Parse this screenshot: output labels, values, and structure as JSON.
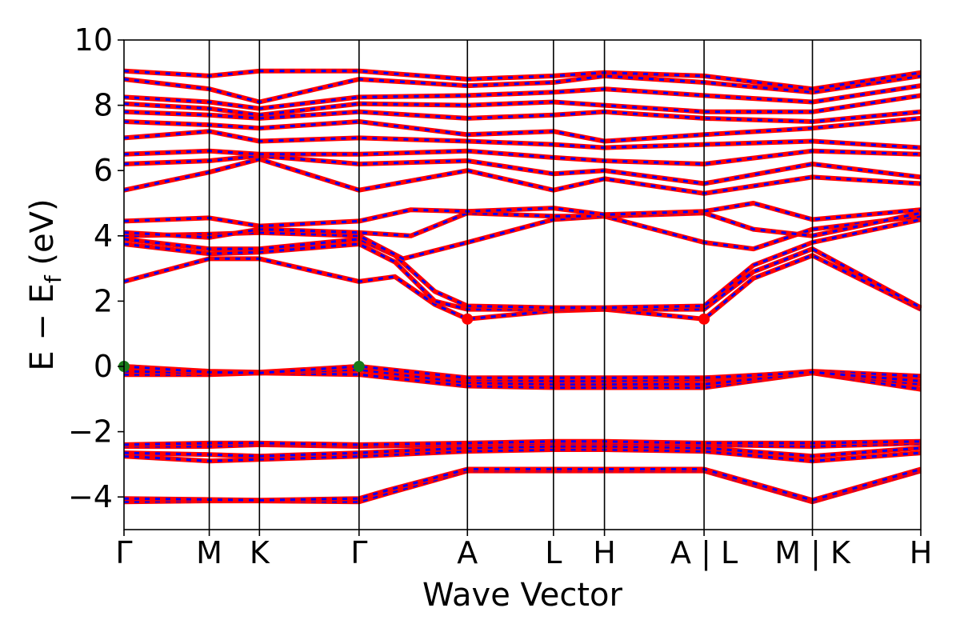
{
  "chart_data": {
    "type": "line",
    "xlabel": "Wave Vector",
    "ylabel_main": "E − E",
    "ylabel_sub": "f",
    "ylabel_unit": " (eV)",
    "ylim": [
      -5,
      10
    ],
    "yticks": [
      -4,
      -2,
      0,
      2,
      4,
      6,
      8,
      10
    ],
    "ytick_labels": [
      "−4",
      "−2",
      "0",
      "2",
      "4",
      "6",
      "8",
      "10"
    ],
    "kpath_ticks": [
      {
        "pos": 0.0,
        "label": "Γ"
      },
      {
        "pos": 0.107,
        "label": "M"
      },
      {
        "pos": 0.17,
        "label": "K"
      },
      {
        "pos": 0.295,
        "label": "Γ"
      },
      {
        "pos": 0.431,
        "label": "A"
      },
      {
        "pos": 0.539,
        "label": "L"
      },
      {
        "pos": 0.603,
        "label": "H"
      },
      {
        "pos": 0.728,
        "label": "A | L"
      },
      {
        "pos": 0.864,
        "label": "M | K"
      },
      {
        "pos": 1.0,
        "label": "H"
      }
    ],
    "band_colors": {
      "primary": "#ff0000",
      "secondary": "#0000ff"
    },
    "markers": [
      {
        "kind": "vbm",
        "x": 0.0,
        "y": 0.0,
        "color": "#1a7a1a"
      },
      {
        "kind": "vbm",
        "x": 0.295,
        "y": 0.0,
        "color": "#1a7a1a"
      },
      {
        "kind": "cbm",
        "x": 0.431,
        "y": 1.45,
        "color": "#ff0000"
      },
      {
        "kind": "cbm",
        "x": 0.728,
        "y": 1.45,
        "color": "#ff0000"
      }
    ],
    "bands": [
      {
        "name": "",
        "x": [
          0,
          0.107,
          0.17,
          0.295,
          0.33,
          0.431,
          0.539,
          0.603,
          0.728,
          0.864,
          1.0
        ],
        "y": [
          -4.15,
          -4.12,
          -4.12,
          -4.15,
          -3.9,
          -3.2,
          -3.2,
          -3.2,
          -3.2,
          -4.15,
          -3.2
        ]
      },
      {
        "name": "",
        "x": [
          0,
          0.107,
          0.17,
          0.295,
          0.33,
          0.431,
          0.539,
          0.603,
          0.728,
          0.864,
          1.0
        ],
        "y": [
          -4.05,
          -4.08,
          -4.1,
          -4.05,
          -3.8,
          -3.15,
          -3.15,
          -3.15,
          -3.15,
          -4.1,
          -3.15
        ]
      },
      {
        "name": "",
        "x": [
          0,
          0.107,
          0.17,
          0.295,
          0.431,
          0.539,
          0.603,
          0.728,
          0.864,
          1.0
        ],
        "y": [
          -2.75,
          -2.9,
          -2.85,
          -2.75,
          -2.6,
          -2.55,
          -2.55,
          -2.6,
          -2.9,
          -2.65
        ]
      },
      {
        "name": "",
        "x": [
          0,
          0.107,
          0.17,
          0.295,
          0.431,
          0.539,
          0.603,
          0.728,
          0.864,
          1.0
        ],
        "y": [
          -2.65,
          -2.7,
          -2.75,
          -2.65,
          -2.5,
          -2.45,
          -2.45,
          -2.5,
          -2.75,
          -2.5
        ]
      },
      {
        "name": "",
        "x": [
          0,
          0.107,
          0.17,
          0.295,
          0.431,
          0.539,
          0.603,
          0.728,
          0.864,
          1.0
        ],
        "y": [
          -2.45,
          -2.45,
          -2.4,
          -2.45,
          -2.4,
          -2.35,
          -2.35,
          -2.4,
          -2.45,
          -2.35
        ]
      },
      {
        "name": "",
        "x": [
          0,
          0.107,
          0.17,
          0.295,
          0.431,
          0.539,
          0.603,
          0.728,
          0.864,
          1.0
        ],
        "y": [
          -2.4,
          -2.35,
          -2.35,
          -2.4,
          -2.35,
          -2.3,
          -2.3,
          -2.35,
          -2.35,
          -2.3
        ]
      },
      {
        "name": "",
        "x": [
          0,
          0.107,
          0.17,
          0.295,
          0.431,
          0.539,
          0.603,
          0.728,
          0.864,
          1.0
        ],
        "y": [
          -0.25,
          -0.25,
          -0.2,
          -0.25,
          -0.6,
          -0.65,
          -0.65,
          -0.65,
          -0.2,
          -0.7
        ]
      },
      {
        "name": "",
        "x": [
          0,
          0.107,
          0.17,
          0.295,
          0.431,
          0.539,
          0.603,
          0.728,
          0.864,
          1.0
        ],
        "y": [
          -0.15,
          -0.2,
          -0.2,
          -0.1,
          -0.5,
          -0.55,
          -0.55,
          -0.55,
          -0.2,
          -0.55
        ]
      },
      {
        "name": "",
        "x": [
          0,
          0.107,
          0.17,
          0.295,
          0.431,
          0.539,
          0.603,
          0.728,
          0.864,
          1.0
        ],
        "y": [
          0.0,
          -0.15,
          -0.18,
          0.0,
          -0.4,
          -0.45,
          -0.45,
          -0.4,
          -0.15,
          -0.3
        ]
      },
      {
        "name": "",
        "x": [
          0,
          0.107,
          0.17,
          0.295,
          0.431,
          0.539,
          0.603,
          0.728,
          0.864,
          1.0
        ],
        "y": [
          0.0,
          -0.18,
          -0.2,
          0.0,
          -0.35,
          -0.35,
          -0.35,
          -0.35,
          -0.18,
          -0.45
        ]
      },
      {
        "name": "",
        "x": [
          0,
          0.107,
          0.17,
          0.295,
          0.34,
          0.39,
          0.431,
          0.539,
          0.603,
          0.728,
          0.79,
          0.864,
          1.0
        ],
        "y": [
          2.6,
          3.3,
          3.3,
          2.6,
          2.75,
          1.9,
          1.45,
          1.7,
          1.75,
          1.45,
          2.7,
          3.4,
          1.75
        ]
      },
      {
        "name": "",
        "x": [
          0,
          0.107,
          0.17,
          0.295,
          0.34,
          0.39,
          0.431,
          0.539,
          0.603,
          0.728,
          0.79,
          0.864,
          1.0
        ],
        "y": [
          3.75,
          3.45,
          3.5,
          3.75,
          3.2,
          2.0,
          1.75,
          1.75,
          1.75,
          1.75,
          2.9,
          3.6,
          1.8
        ]
      },
      {
        "name": "",
        "x": [
          0,
          0.107,
          0.17,
          0.295,
          0.34,
          0.39,
          0.431,
          0.539,
          0.603,
          0.728,
          0.79,
          0.864,
          1.0
        ],
        "y": [
          3.9,
          3.6,
          3.6,
          3.9,
          3.4,
          2.3,
          1.85,
          1.8,
          1.8,
          1.85,
          3.1,
          3.8,
          4.5
        ]
      },
      {
        "name": "",
        "x": [
          0,
          0.107,
          0.17,
          0.295,
          0.35,
          0.431,
          0.539,
          0.603,
          0.728,
          0.79,
          0.864,
          1.0
        ],
        "y": [
          4.0,
          4.05,
          4.1,
          4.0,
          3.3,
          3.8,
          4.5,
          4.6,
          3.8,
          3.6,
          4.2,
          4.6
        ]
      },
      {
        "name": "",
        "x": [
          0,
          0.107,
          0.17,
          0.295,
          0.36,
          0.431,
          0.539,
          0.603,
          0.728,
          0.79,
          0.864,
          1.0
        ],
        "y": [
          4.1,
          3.95,
          4.2,
          4.1,
          4.0,
          4.7,
          4.6,
          4.6,
          4.7,
          4.2,
          4.0,
          4.7
        ]
      },
      {
        "name": "",
        "x": [
          0,
          0.107,
          0.17,
          0.295,
          0.36,
          0.431,
          0.539,
          0.603,
          0.728,
          0.79,
          0.864,
          1.0
        ],
        "y": [
          4.45,
          4.55,
          4.3,
          4.45,
          4.8,
          4.75,
          4.85,
          4.65,
          4.75,
          5.0,
          4.5,
          4.8
        ]
      },
      {
        "name": "",
        "x": [
          0,
          0.107,
          0.17,
          0.295,
          0.431,
          0.539,
          0.603,
          0.728,
          0.864,
          1.0
        ],
        "y": [
          5.4,
          5.95,
          6.35,
          5.4,
          6.0,
          5.4,
          5.75,
          5.3,
          5.8,
          5.6
        ]
      },
      {
        "name": "",
        "x": [
          0,
          0.107,
          0.17,
          0.295,
          0.431,
          0.539,
          0.603,
          0.728,
          0.864,
          1.0
        ],
        "y": [
          6.2,
          6.3,
          6.45,
          6.2,
          6.3,
          5.9,
          6.0,
          5.6,
          6.2,
          5.8
        ]
      },
      {
        "name": "",
        "x": [
          0,
          0.107,
          0.17,
          0.295,
          0.431,
          0.539,
          0.603,
          0.728,
          0.864,
          1.0
        ],
        "y": [
          6.5,
          6.6,
          6.5,
          6.5,
          6.6,
          6.4,
          6.3,
          6.2,
          6.6,
          6.5
        ]
      },
      {
        "name": "",
        "x": [
          0,
          0.107,
          0.17,
          0.295,
          0.431,
          0.539,
          0.603,
          0.728,
          0.864,
          1.0
        ],
        "y": [
          7.0,
          7.2,
          6.9,
          7.0,
          6.9,
          6.8,
          6.7,
          6.8,
          6.9,
          6.7
        ]
      },
      {
        "name": "",
        "x": [
          0,
          0.107,
          0.17,
          0.295,
          0.431,
          0.539,
          0.603,
          0.728,
          0.864,
          1.0
        ],
        "y": [
          7.5,
          7.4,
          7.3,
          7.5,
          7.1,
          7.2,
          6.9,
          7.1,
          7.3,
          7.6
        ]
      },
      {
        "name": "",
        "x": [
          0,
          0.107,
          0.17,
          0.295,
          0.431,
          0.539,
          0.603,
          0.728,
          0.864,
          1.0
        ],
        "y": [
          7.8,
          7.7,
          7.6,
          7.8,
          7.6,
          7.7,
          7.8,
          7.6,
          7.5,
          7.8
        ]
      },
      {
        "name": "",
        "x": [
          0,
          0.107,
          0.17,
          0.295,
          0.431,
          0.539,
          0.603,
          0.728,
          0.864,
          1.0
        ],
        "y": [
          8.05,
          7.9,
          7.7,
          8.05,
          8.0,
          8.1,
          8.0,
          7.8,
          7.8,
          8.3
        ]
      },
      {
        "name": "",
        "x": [
          0,
          0.107,
          0.17,
          0.295,
          0.431,
          0.539,
          0.603,
          0.728,
          0.864,
          1.0
        ],
        "y": [
          8.25,
          8.1,
          7.9,
          8.25,
          8.3,
          8.4,
          8.5,
          8.3,
          8.1,
          8.6
        ]
      },
      {
        "name": "",
        "x": [
          0,
          0.107,
          0.17,
          0.295,
          0.431,
          0.539,
          0.603,
          0.728,
          0.864,
          1.0
        ],
        "y": [
          8.8,
          8.5,
          8.1,
          8.8,
          8.6,
          8.7,
          8.9,
          8.7,
          8.4,
          8.9
        ]
      },
      {
        "name": "",
        "x": [
          0,
          0.107,
          0.17,
          0.295,
          0.431,
          0.539,
          0.603,
          0.728,
          0.864,
          1.0
        ],
        "y": [
          9.05,
          8.9,
          9.05,
          9.05,
          8.8,
          8.9,
          9.0,
          8.9,
          8.5,
          9.0
        ]
      }
    ]
  }
}
